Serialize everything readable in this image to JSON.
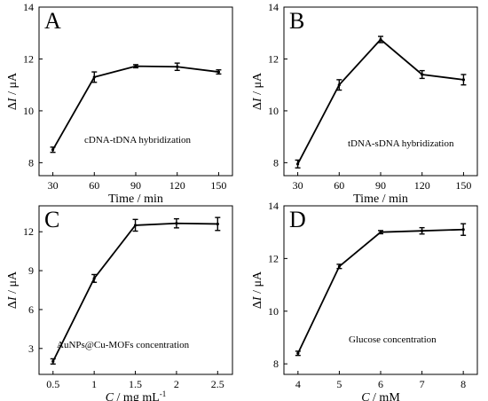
{
  "chart_data": [
    {
      "type": "line",
      "panel": "A",
      "annotation": "cDNA-tDNA hybridization",
      "xlabel": "Time / min",
      "ylabel": "ΔI / μA",
      "x": [
        30,
        60,
        90,
        120,
        150
      ],
      "y": [
        8.5,
        11.3,
        11.72,
        11.7,
        11.5
      ],
      "yerr": [
        0.1,
        0.2,
        0.06,
        0.14,
        0.08
      ],
      "xlim": [
        20,
        160
      ],
      "ylim": [
        7.5,
        14
      ],
      "xticks": [
        30,
        60,
        90,
        120,
        150
      ],
      "yticks": [
        8,
        10,
        12,
        14
      ]
    },
    {
      "type": "line",
      "panel": "B",
      "annotation": "tDNA-sDNA hybridization",
      "xlabel": "Time / min",
      "ylabel": "ΔI / μA",
      "x": [
        30,
        60,
        90,
        120,
        150
      ],
      "y": [
        7.95,
        11.0,
        12.75,
        11.4,
        11.2
      ],
      "yerr": [
        0.15,
        0.2,
        0.12,
        0.15,
        0.2
      ],
      "xlim": [
        20,
        160
      ],
      "ylim": [
        7.5,
        14
      ],
      "xticks": [
        30,
        60,
        90,
        120,
        150
      ],
      "yticks": [
        8,
        10,
        12,
        14
      ]
    },
    {
      "type": "line",
      "panel": "C",
      "annotation": "AuNPs@Cu-MOFs concentration",
      "xlabel": "C / mg mL-1",
      "ylabel": "ΔI / μA",
      "x": [
        0.5,
        1.0,
        1.5,
        2.0,
        2.5
      ],
      "y": [
        2.0,
        8.4,
        12.5,
        12.65,
        12.6
      ],
      "yerr": [
        0.2,
        0.3,
        0.45,
        0.35,
        0.5
      ],
      "xlim": [
        0.33,
        2.68
      ],
      "ylim": [
        1.0,
        14.0
      ],
      "xticks": [
        0.5,
        1.0,
        1.5,
        2.0,
        2.5
      ],
      "yticks": [
        3,
        6,
        9,
        12
      ]
    },
    {
      "type": "line",
      "panel": "D",
      "annotation": "Glucose concentration",
      "xlabel": "C / mM",
      "ylabel": "ΔI / μA",
      "x": [
        4,
        5,
        6,
        7,
        8
      ],
      "y": [
        8.4,
        11.7,
        13.0,
        13.05,
        13.1
      ],
      "yerr": [
        0.08,
        0.08,
        0.06,
        0.12,
        0.22
      ],
      "xlim": [
        3.66,
        8.34
      ],
      "ylim": [
        7.6,
        14
      ],
      "xticks": [
        4,
        5,
        6,
        7,
        8
      ],
      "yticks": [
        8,
        10,
        12,
        14
      ]
    }
  ]
}
